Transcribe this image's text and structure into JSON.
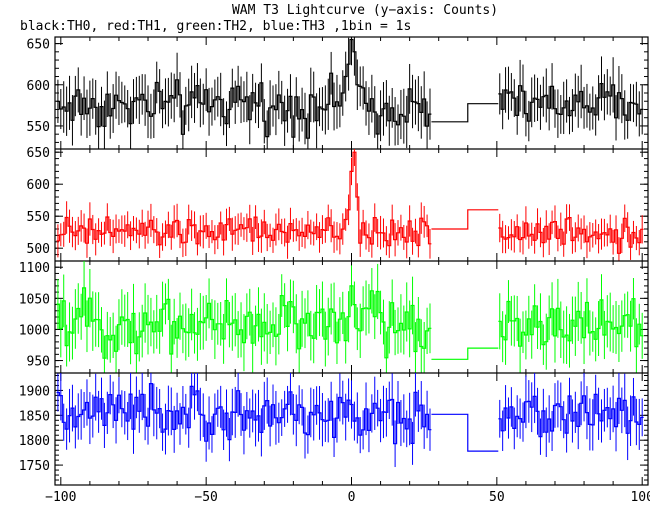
{
  "chart_data": {
    "type": "line",
    "title": "WAM T3 Lightcurve (y−axis: Counts)",
    "subtitle": "black:TH0, red:TH1, green:TH2, blue:TH3 ,1bin = 1s",
    "x_ticks": [
      "−100",
      "−50",
      "0",
      "50",
      "100"
    ],
    "xlim": [
      -102,
      102
    ],
    "gap": [
      28,
      51
    ],
    "gap_level_steps": [
      40
    ],
    "panels": [
      {
        "name": "TH0",
        "color": "#000000",
        "ylim": [
          522,
          658
        ],
        "y_ticks": [
          550,
          600,
          650
        ],
        "base": 575,
        "amp": 22,
        "err": 28,
        "gap_levels": [
          555,
          577
        ],
        "burst": [
          [
            -3,
            590
          ],
          [
            -2,
            610
          ],
          [
            -1,
            625
          ],
          [
            0,
            655
          ],
          [
            1,
            640
          ],
          [
            2,
            600
          ]
        ]
      },
      {
        "name": "TH1",
        "color": "#ff0000",
        "ylim": [
          480,
          655
        ],
        "y_ticks": [
          500,
          550,
          600,
          650
        ],
        "base": 525,
        "amp": 18,
        "err": 22,
        "gap_levels": [
          530,
          560
        ],
        "burst": [
          [
            -1,
            560
          ],
          [
            0,
            620
          ],
          [
            1,
            650
          ],
          [
            2,
            580
          ]
        ]
      },
      {
        "name": "TH2",
        "color": "#00ff00",
        "ylim": [
          930,
          1110
        ],
        "y_ticks": [
          950,
          1000,
          1050,
          1100
        ],
        "base": 1010,
        "amp": 35,
        "err": 40,
        "gap_levels": [
          952,
          970
        ],
        "burst": [
          [
            0,
            1070
          ],
          [
            1,
            1040
          ]
        ]
      },
      {
        "name": "TH3",
        "color": "#0000ff",
        "ylim": [
          1710,
          1935
        ],
        "y_ticks": [
          1750,
          1800,
          1850,
          1900
        ],
        "base": 1850,
        "amp": 38,
        "err": 45,
        "gap_levels": [
          1852,
          1778
        ],
        "burst": []
      }
    ]
  }
}
